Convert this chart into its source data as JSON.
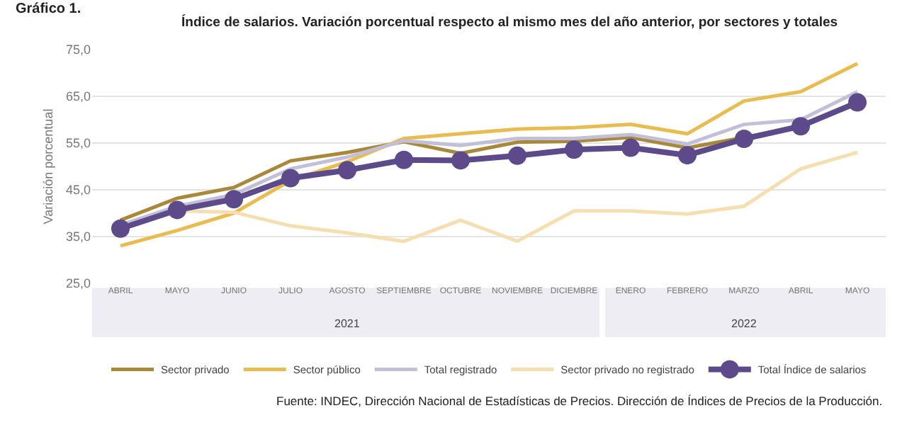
{
  "chart_data": {
    "type": "line",
    "title": "Índice de salarios. Variación porcentual respecto al mismo mes del año anterior, por sectores y totales",
    "ylabel": "Variación porcentual",
    "annotations": [
      "Gráfico 1.",
      "2021",
      "2022",
      "Fuente: INDEC, Dirección Nacional de Estadísticas de Precios. Dirección de Índices de Precios de la Producción."
    ],
    "categories": [
      "ABRIL",
      "MAYO",
      "JUNIO",
      "JULIO",
      "AGOSTO",
      "SEPTIEMBRE",
      "OCTUBRE",
      "NOVIEMBRE",
      "DICIEMBRE",
      "ENERO",
      "FEBRERO",
      "MARZO",
      "ABRIL",
      "MAYO"
    ],
    "series": [
      {
        "name": "Sector privado",
        "color": "#a8883a",
        "marker": "none",
        "values": [
          38.5,
          43.2,
          45.5,
          51.2,
          53.0,
          55.3,
          52.8,
          55.2,
          55.4,
          56.2,
          54.0,
          56.2,
          58.6,
          63.4
        ]
      },
      {
        "name": "Sector público",
        "color": "#e8bc50",
        "marker": "none",
        "values": [
          33.0,
          36.3,
          40.0,
          47.0,
          51.0,
          56.0,
          57.0,
          58.0,
          58.3,
          59.0,
          57.0,
          64.0,
          66.0,
          72.0
        ]
      },
      {
        "name": "Total registrado",
        "color": "#c4bfd8",
        "marker": "none",
        "values": [
          37.5,
          41.5,
          44.0,
          49.5,
          52.0,
          55.5,
          54.5,
          56.0,
          56.0,
          56.8,
          54.8,
          59.0,
          60.0,
          66.0
        ]
      },
      {
        "name": "Sector privado no registrado",
        "color": "#f5dfb0",
        "marker": "none",
        "values": [
          37.0,
          40.5,
          40.2,
          37.3,
          35.8,
          34.0,
          38.5,
          34.0,
          40.5,
          40.5,
          39.8,
          41.5,
          49.5,
          53.0
        ]
      },
      {
        "name": "Total Índice de salarios",
        "color": "#5c4a8a",
        "marker": "circle",
        "values": [
          36.7,
          40.7,
          43.0,
          47.5,
          49.2,
          51.4,
          51.3,
          52.3,
          53.6,
          54.0,
          52.4,
          55.9,
          58.6,
          63.7
        ]
      }
    ],
    "ylim": [
      25,
      75
    ],
    "yticks": [
      {
        "value": 25,
        "label": "25,0"
      },
      {
        "value": 35,
        "label": "35,0"
      },
      {
        "value": 45,
        "label": "45,0"
      },
      {
        "value": 55,
        "label": "55,0"
      },
      {
        "value": 65,
        "label": "65,0"
      },
      {
        "value": 75,
        "label": "75,0"
      }
    ],
    "grid": "y",
    "legend": "bottom",
    "line_style": "solid"
  }
}
